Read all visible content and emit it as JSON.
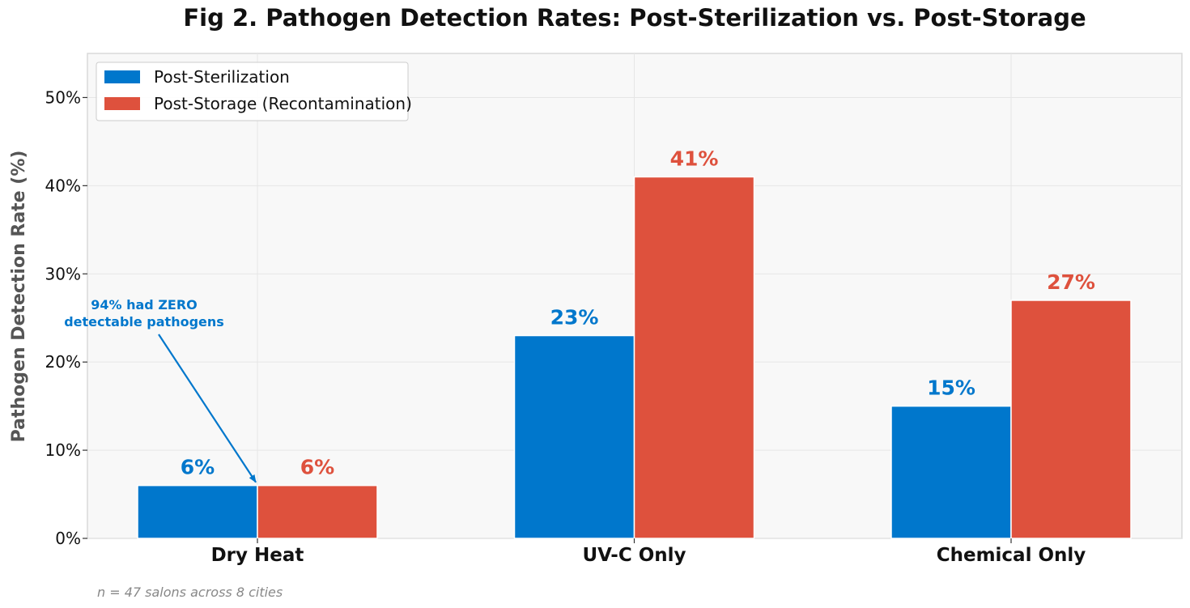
{
  "colors": {
    "post_sterilization": "#0077cc",
    "post_storage": "#de513d",
    "plot_background": "#f8f8f8",
    "annotation": "#0077cc"
  },
  "chart_data": {
    "type": "bar",
    "title": "Fig 2. Pathogen Detection Rates: Post-Sterilization vs. Post-Storage",
    "xlabel": "",
    "ylabel": "Pathogen Detection Rate (%)",
    "categories": [
      "Dry Heat",
      "UV-C Only",
      "Chemical Only"
    ],
    "series": [
      {
        "name": "Post-Sterilization",
        "values": [
          6,
          23,
          15
        ],
        "labels": [
          "6%",
          "23%",
          "15%"
        ],
        "color": "#0077cc"
      },
      {
        "name": "Post-Storage (Recontamination)",
        "values": [
          6,
          41,
          27
        ],
        "labels": [
          "6%",
          "41%",
          "27%"
        ],
        "color": "#de513d"
      }
    ],
    "ylim": [
      0,
      55
    ],
    "yticks": [
      0,
      10,
      20,
      30,
      40,
      50
    ],
    "ytick_labels": [
      "0%",
      "10%",
      "20%",
      "30%",
      "40%",
      "50%"
    ],
    "grid": true,
    "legend_position": "top-left",
    "annotation": {
      "lines": [
        "94% had ZERO",
        "detectable pathogens"
      ],
      "target_category": "Dry Heat",
      "target_value": 6
    },
    "footnote": "n = 47 salons across 8 cities"
  }
}
